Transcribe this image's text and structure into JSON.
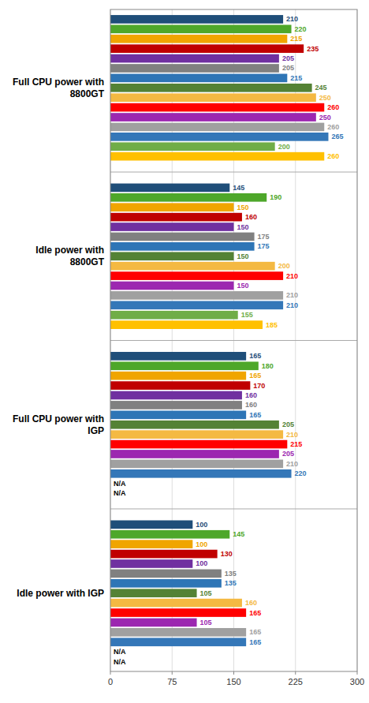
{
  "chart_data": {
    "type": "bar",
    "orientation": "horizontal",
    "categories": [
      "Full CPU power with 8800GT",
      "Idle power with 8800GT",
      "Full CPU power with IGP",
      "Idle power with IGP"
    ],
    "series": [
      {
        "color": "#1f4e79",
        "values": [
          210,
          145,
          165,
          100
        ]
      },
      {
        "color": "#4ea72a",
        "values": [
          220,
          190,
          180,
          145
        ]
      },
      {
        "color": "#f0a500",
        "values": [
          215,
          150,
          165,
          100
        ]
      },
      {
        "color": "#c00000",
        "values": [
          235,
          160,
          170,
          130
        ]
      },
      {
        "color": "#7030a0",
        "values": [
          205,
          150,
          160,
          100
        ]
      },
      {
        "color": "#808080",
        "values": [
          205,
          175,
          160,
          135
        ]
      },
      {
        "color": "#2e75b6",
        "values": [
          215,
          175,
          165,
          135
        ]
      },
      {
        "color": "#548235",
        "values": [
          245,
          150,
          205,
          105
        ]
      },
      {
        "color": "#f4b942",
        "values": [
          250,
          200,
          210,
          160
        ]
      },
      {
        "color": "#ff0000",
        "values": [
          260,
          210,
          215,
          165
        ]
      },
      {
        "color": "#9c27b0",
        "values": [
          250,
          150,
          205,
          105
        ]
      },
      {
        "color": "#a0a0a0",
        "values": [
          260,
          210,
          210,
          165
        ]
      },
      {
        "color": "#3477b8",
        "values": [
          265,
          210,
          220,
          165
        ]
      },
      {
        "color": "#70ad47",
        "values": [
          200,
          155,
          null,
          null
        ],
        "value_labels": [
          "200",
          "155",
          "N/A",
          "N/A"
        ]
      },
      {
        "color": "#ffc000",
        "values": [
          260,
          185,
          null,
          null
        ],
        "value_labels": [
          "260",
          "185",
          "N/A",
          "N/A"
        ]
      }
    ],
    "xlim": [
      0,
      300
    ],
    "xticks": [
      0,
      75,
      150,
      225,
      300
    ],
    "grid": true,
    "data_labels": true
  }
}
